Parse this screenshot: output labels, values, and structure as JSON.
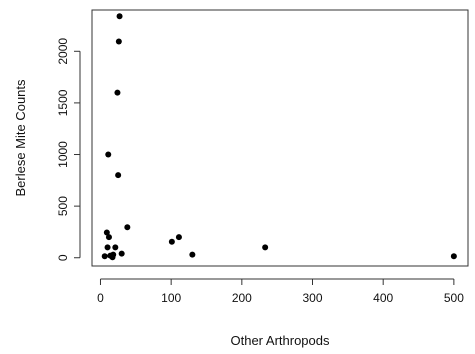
{
  "chart_data": {
    "type": "scatter",
    "xlabel": "Other Arthropods",
    "ylabel": "Berlese Mite Counts",
    "xlim": [
      -12,
      520
    ],
    "ylim": [
      -80,
      2400
    ],
    "xticks": [
      0,
      100,
      200,
      300,
      400,
      500
    ],
    "yticks": [
      0,
      500,
      1000,
      1500,
      2000
    ],
    "grid": false,
    "points": [
      {
        "x": 27,
        "y": 2340
      },
      {
        "x": 26,
        "y": 2095
      },
      {
        "x": 24,
        "y": 1600
      },
      {
        "x": 11,
        "y": 1000
      },
      {
        "x": 25,
        "y": 800
      },
      {
        "x": 38,
        "y": 295
      },
      {
        "x": 9,
        "y": 245
      },
      {
        "x": 12,
        "y": 200
      },
      {
        "x": 111,
        "y": 200
      },
      {
        "x": 101,
        "y": 155
      },
      {
        "x": 233,
        "y": 100
      },
      {
        "x": 10,
        "y": 100
      },
      {
        "x": 21,
        "y": 100
      },
      {
        "x": 30,
        "y": 40
      },
      {
        "x": 18,
        "y": 30
      },
      {
        "x": 130,
        "y": 30
      },
      {
        "x": 14,
        "y": 20
      },
      {
        "x": 6,
        "y": 15
      },
      {
        "x": 500,
        "y": 15
      },
      {
        "x": 17,
        "y": 5
      }
    ]
  },
  "colors": {
    "point": "#000000",
    "axis": "#333333"
  }
}
